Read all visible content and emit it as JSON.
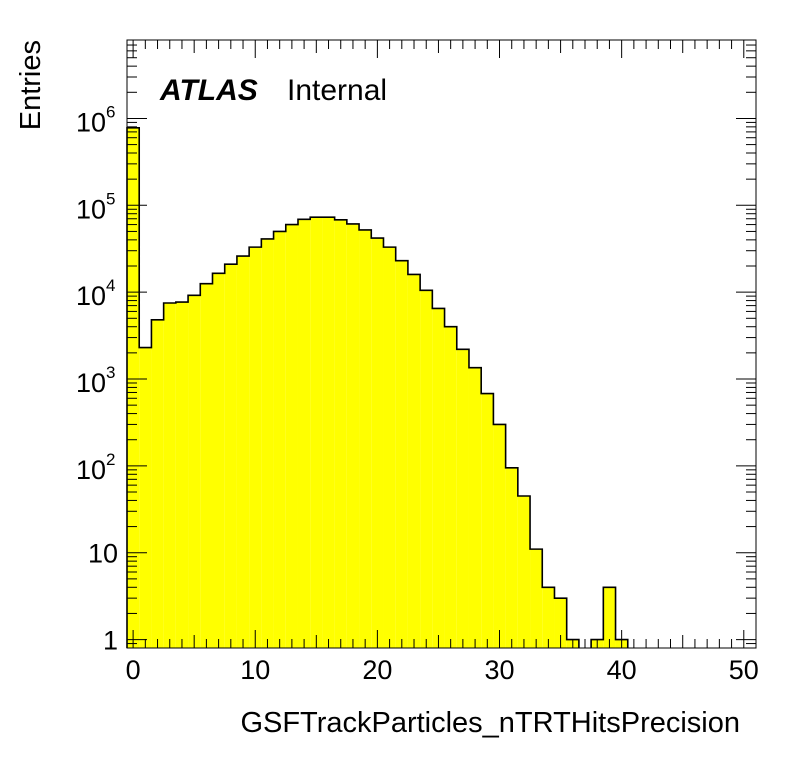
{
  "chart_data": {
    "type": "bar",
    "title": "",
    "xlabel": "GSFTrackParticles_nTRTHitsPrecision",
    "ylabel": "Entries",
    "xlim": [
      -0.5,
      51
    ],
    "ylim": [
      0.8,
      8000000
    ],
    "yscale": "log",
    "bin_width": 1,
    "bin_edges_start": -0.5,
    "fill_color": "#ffff00",
    "line_color": "#000000",
    "values": [
      780000,
      2300,
      4800,
      7500,
      7700,
      9200,
      12500,
      16500,
      21000,
      26000,
      33000,
      41000,
      50000,
      60000,
      69000,
      73000,
      73000,
      68000,
      61000,
      52000,
      42000,
      33000,
      23000,
      16000,
      10500,
      6500,
      4000,
      2200,
      1350,
      680,
      300,
      95,
      45,
      11,
      4,
      3,
      1,
      0,
      1,
      4,
      1,
      0,
      0,
      0,
      0,
      0,
      0,
      0,
      0,
      0,
      0
    ],
    "xticks": [
      {
        "value": 0,
        "label": "0"
      },
      {
        "value": 10,
        "label": "10"
      },
      {
        "value": 20,
        "label": "20"
      },
      {
        "value": 30,
        "label": "30"
      },
      {
        "value": 40,
        "label": "40"
      },
      {
        "value": 50,
        "label": "50"
      }
    ],
    "yticks": [
      {
        "value": 1,
        "base": "1",
        "exp": ""
      },
      {
        "value": 10,
        "base": "10",
        "exp": ""
      },
      {
        "value": 100,
        "base": "10",
        "exp": "2"
      },
      {
        "value": 1000,
        "base": "10",
        "exp": "3"
      },
      {
        "value": 10000,
        "base": "10",
        "exp": "4"
      },
      {
        "value": 100000,
        "base": "10",
        "exp": "5"
      },
      {
        "value": 1000000,
        "base": "10",
        "exp": "6"
      }
    ]
  },
  "labels": {
    "atlas": "ATLAS",
    "internal": "Internal"
  }
}
